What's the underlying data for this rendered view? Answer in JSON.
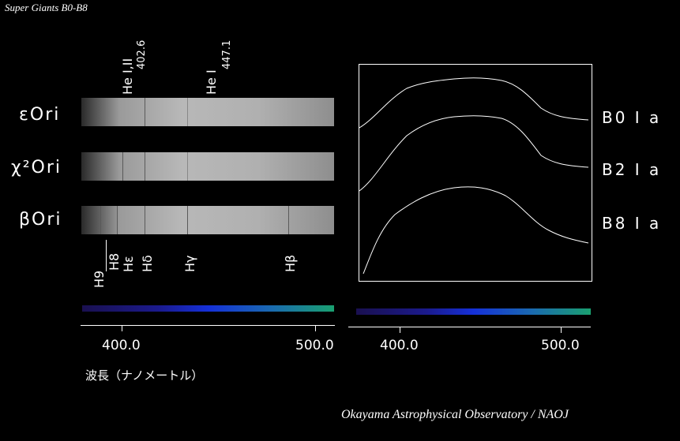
{
  "title": "Super Giants B0-B8",
  "credit": "Okayama Astrophysical Observatory / NAOJ",
  "stars": [
    {
      "name": "εOri",
      "class": "B0 I a"
    },
    {
      "name": "χ²Ori",
      "class": "B2 I a"
    },
    {
      "name": "βOri",
      "class": "B8 I a"
    }
  ],
  "top_lines": [
    {
      "label": "He I,II",
      "wavelength": "402.6",
      "nm": 402.6
    },
    {
      "label": "He I",
      "wavelength": "447.1",
      "nm": 447.1
    }
  ],
  "balmer_lines": [
    {
      "label": "H9",
      "nm": 383.5
    },
    {
      "label": "H8",
      "nm": 388.9
    },
    {
      "label": "Hε",
      "nm": 397.0
    },
    {
      "label": "Hδ",
      "nm": 410.2
    },
    {
      "label": "Hγ",
      "nm": 434.0
    },
    {
      "label": "Hβ",
      "nm": 486.1
    }
  ],
  "axis": {
    "ticks": [
      "400.0",
      "500.0"
    ],
    "xlabel": "波長（ナノメートル）"
  },
  "colors": {
    "background": "#000000",
    "foreground": "#ffffff"
  }
}
